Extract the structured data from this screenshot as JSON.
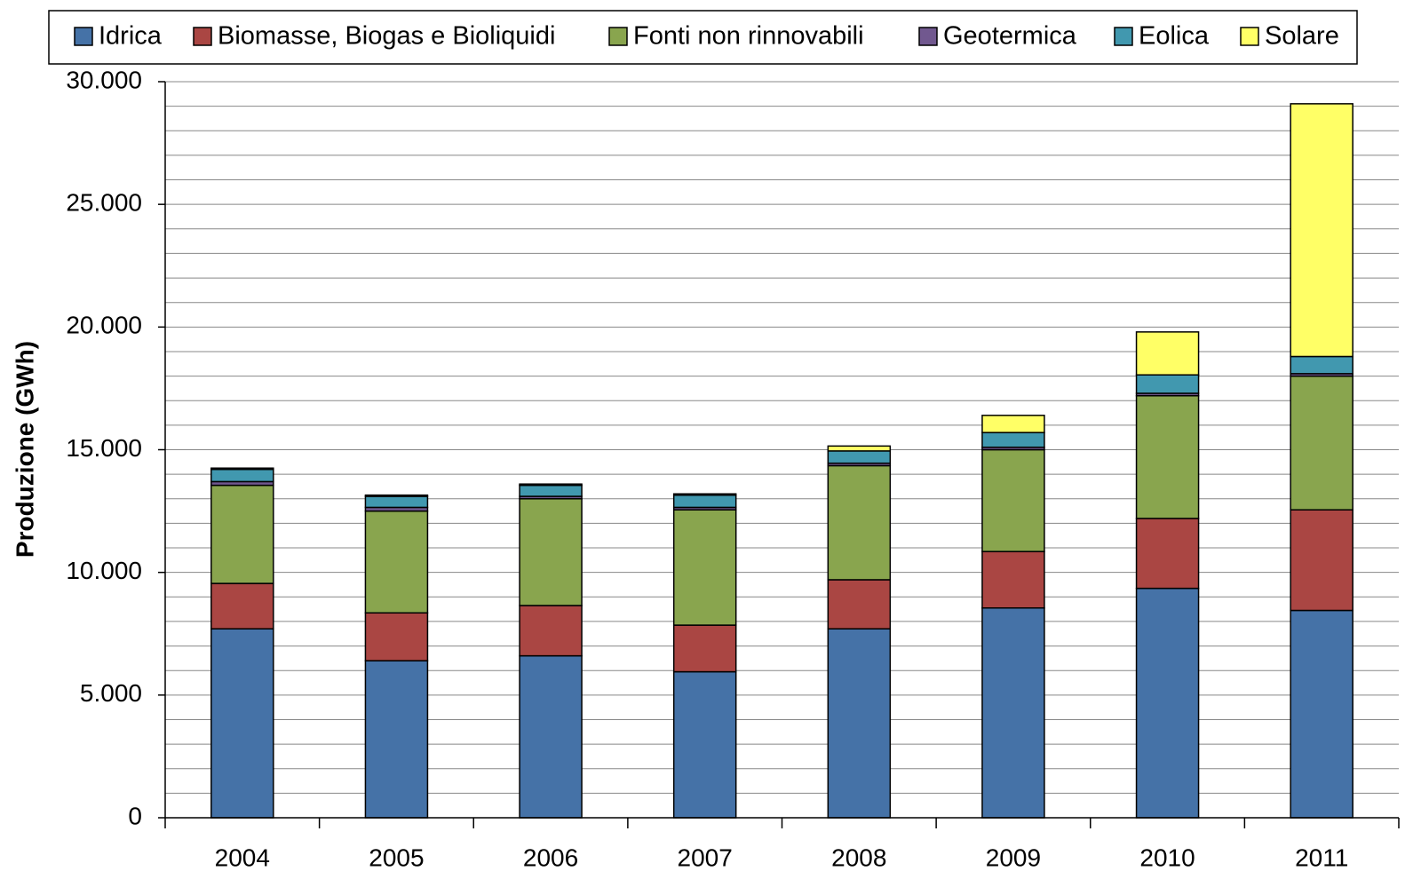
{
  "chart_data": {
    "type": "stacked_bar",
    "y_label": "Produzione (GWh)",
    "categories": [
      "2004",
      "2005",
      "2006",
      "2007",
      "2008",
      "2009",
      "2010",
      "2011"
    ],
    "series": [
      {
        "name": "Idrica",
        "color": "#4572a7",
        "values": [
          7700,
          6400,
          6600,
          5950,
          7700,
          8550,
          9350,
          8450
        ]
      },
      {
        "name": "Biomasse, Biogas e Bioliquidi",
        "color": "#aa4643",
        "values": [
          1850,
          1950,
          2050,
          1900,
          2000,
          2300,
          2850,
          4100
        ]
      },
      {
        "name": "Fonti non rinnovabili",
        "color": "#89a54e",
        "values": [
          4000,
          4150,
          4350,
          4700,
          4650,
          4150,
          5000,
          5450
        ]
      },
      {
        "name": "Geotermica",
        "color": "#71588f",
        "values": [
          150,
          150,
          100,
          100,
          100,
          100,
          100,
          100
        ]
      },
      {
        "name": "Eolica",
        "color": "#4198af",
        "values": [
          500,
          450,
          450,
          500,
          500,
          600,
          750,
          700
        ]
      },
      {
        "name": "Solare",
        "color": "#ffff66",
        "values": [
          50,
          50,
          50,
          50,
          200,
          700,
          1750,
          10300
        ]
      }
    ],
    "ylim": [
      0,
      30000
    ],
    "yticks": [
      0,
      {
        "value": 5000,
        "label": "5.000"
      },
      {
        "value": 10000,
        "label": "10.000"
      },
      {
        "value": 15000,
        "label": "15.000"
      },
      {
        "value": 20000,
        "label": "20.000"
      },
      {
        "value": 25000,
        "label": "25.000"
      },
      {
        "value": 30000,
        "label": "30.000"
      }
    ],
    "grid_lines": [
      1000,
      2000,
      3000,
      4000,
      5000,
      6000,
      7000,
      8000,
      9000,
      10000,
      11000,
      12000,
      13000,
      14000,
      15000,
      16000,
      17000,
      18000,
      19000,
      20000,
      21000,
      22000,
      23000,
      24000,
      25000,
      26000,
      27000,
      28000,
      29000,
      30000
    ],
    "grid": true,
    "legend": "top"
  }
}
